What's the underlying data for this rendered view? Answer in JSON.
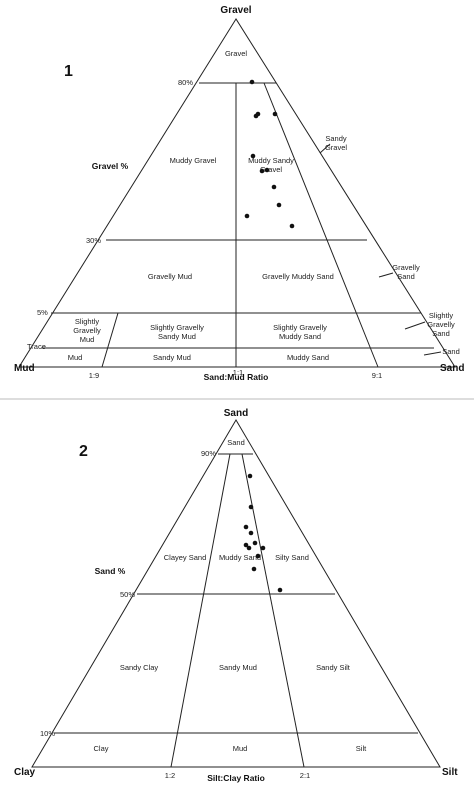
{
  "diagram1": {
    "number": "1",
    "vertices": {
      "top": "Gravel",
      "left": "Mud",
      "right": "Sand"
    },
    "side_axis_label": "Gravel %",
    "bottom_axis_label": "Sand:Mud Ratio",
    "gravel_levels": [
      "80%",
      "30%",
      "5%",
      "Trace"
    ],
    "ratio_ticks": [
      "1:9",
      "1:1",
      "9:1"
    ],
    "fields": {
      "gravel": "Gravel",
      "muddy_gravel": "Muddy Gravel",
      "muddy_sandy_gravel": "Muddy Sandy Gravel",
      "sandy_gravel": "Sandy Gravel",
      "gravelly_mud": "Gravelly Mud",
      "gravelly_muddy_sand": "Gravelly Muddy Sand",
      "gravelly_sand": "Gravelly Sand",
      "slightly_gravelly_mud": "Slightly Gravelly Mud",
      "slightly_gravelly_sandy_mud": "Slightly Gravelly Sandy Mud",
      "slightly_gravelly_muddy_sand": "Slightly Gravelly Muddy Sand",
      "slightly_gravelly_sand": "Slightly Gravelly Sand",
      "mud": "Mud",
      "sandy_mud": "Sandy Mud",
      "muddy_sand": "Muddy Sand",
      "sand": "Sand"
    }
  },
  "diagram2": {
    "number": "2",
    "vertices": {
      "top": "Sand",
      "left": "Clay",
      "right": "Silt"
    },
    "side_axis_label": "Sand %",
    "bottom_axis_label": "Silt:Clay Ratio",
    "sand_levels": [
      "90%",
      "50%",
      "10%"
    ],
    "ratio_ticks": [
      "1:2",
      "2:1"
    ],
    "fields": {
      "sand": "Sand",
      "clayey_sand": "Clayey Sand",
      "muddy_sand": "Muddy Sand",
      "silty_sand": "Silty Sand",
      "sandy_clay": "Sandy Clay",
      "sandy_mud": "Sandy Mud",
      "sandy_silt": "Sandy Silt",
      "clay": "Clay",
      "mud": "Mud",
      "silt": "Silt"
    }
  }
}
